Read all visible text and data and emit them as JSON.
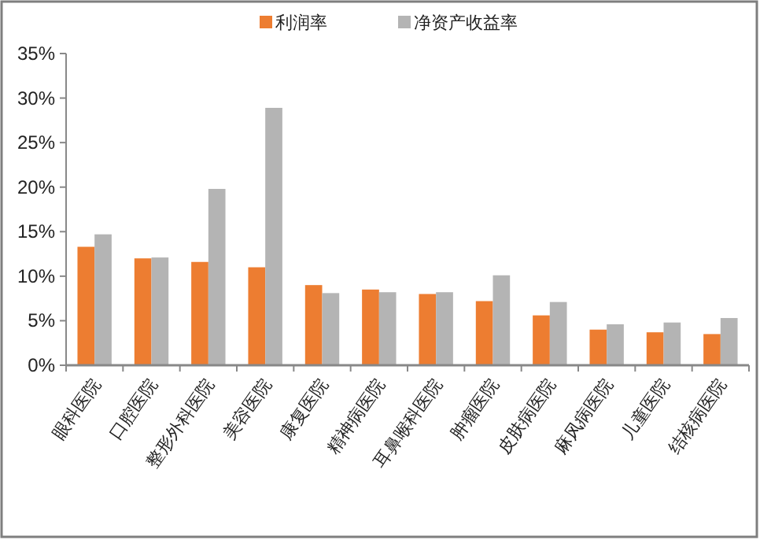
{
  "chart_data": {
    "type": "bar",
    "categories": [
      "眼科医院",
      "口腔医院",
      "整形外科医院",
      "美容医院",
      "康复医院",
      "精神病医院",
      "耳鼻喉科医院",
      "肿瘤医院",
      "皮肤病医院",
      "麻风病医院",
      "儿童医院",
      "结核病医院"
    ],
    "series": [
      {
        "name": "利润率",
        "color": "#ed7d31",
        "values": [
          13.3,
          12.0,
          11.6,
          11.0,
          9.0,
          8.5,
          8.0,
          7.2,
          5.6,
          4.0,
          3.7,
          3.5
        ]
      },
      {
        "name": "净资产收益率",
        "color": "#b4b4b4",
        "values": [
          14.7,
          12.1,
          19.8,
          28.9,
          8.1,
          8.2,
          8.2,
          10.1,
          7.1,
          4.6,
          4.8,
          5.3
        ]
      }
    ],
    "ylim": [
      0,
      35
    ],
    "yticks": [
      {
        "value": 0,
        "label": "0%"
      },
      {
        "value": 5,
        "label": "5%"
      },
      {
        "value": 10,
        "label": "10%"
      },
      {
        "value": 15,
        "label": "15%"
      },
      {
        "value": 20,
        "label": "20%"
      },
      {
        "value": 25,
        "label": "25%"
      },
      {
        "value": 30,
        "label": "30%"
      },
      {
        "value": 35,
        "label": "35%"
      }
    ],
    "grid": false,
    "legend": "top"
  }
}
